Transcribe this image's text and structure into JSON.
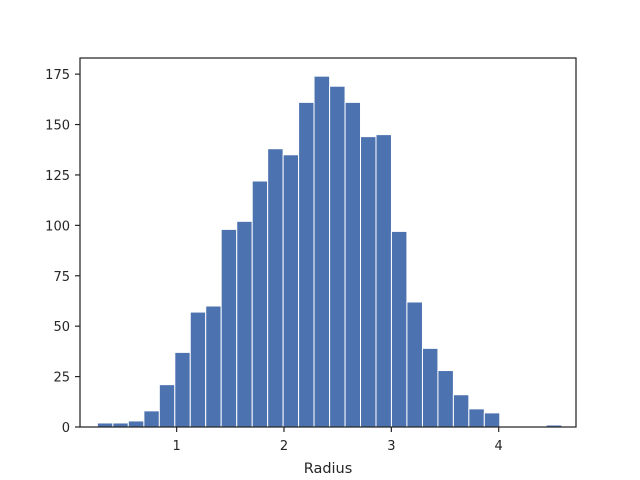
{
  "chart_data": {
    "type": "bar",
    "title": "",
    "xlabel": "Radius",
    "ylabel": "",
    "xlim": [
      0.1,
      4.72
    ],
    "ylim": [
      0,
      183
    ],
    "grid": false,
    "bar_color": "#4c72b0",
    "bin_edges": [
      0.262,
      0.406,
      0.55,
      0.695,
      0.839,
      0.983,
      1.127,
      1.271,
      1.415,
      1.56,
      1.704,
      1.848,
      1.992,
      2.136,
      2.28,
      2.425,
      2.569,
      2.713,
      2.857,
      3.001,
      3.145,
      3.29,
      3.434,
      3.578,
      3.722,
      3.866,
      4.01,
      4.155,
      4.299,
      4.443,
      4.587
    ],
    "counts": [
      2,
      2,
      3,
      8,
      21,
      37,
      57,
      60,
      98,
      102,
      122,
      138,
      135,
      161,
      174,
      169,
      161,
      144,
      145,
      97,
      62,
      39,
      28,
      16,
      9,
      7,
      0,
      0,
      0,
      1
    ],
    "x_ticks": [
      {
        "value": 1,
        "label": "1"
      },
      {
        "value": 2,
        "label": "2"
      },
      {
        "value": 3,
        "label": "3"
      },
      {
        "value": 4,
        "label": "4"
      }
    ],
    "y_ticks": [
      {
        "value": 0,
        "label": "0"
      },
      {
        "value": 25,
        "label": "25"
      },
      {
        "value": 50,
        "label": "50"
      },
      {
        "value": 75,
        "label": "75"
      },
      {
        "value": 100,
        "label": "100"
      },
      {
        "value": 125,
        "label": "125"
      },
      {
        "value": 150,
        "label": "150"
      },
      {
        "value": 175,
        "label": "175"
      }
    ]
  }
}
